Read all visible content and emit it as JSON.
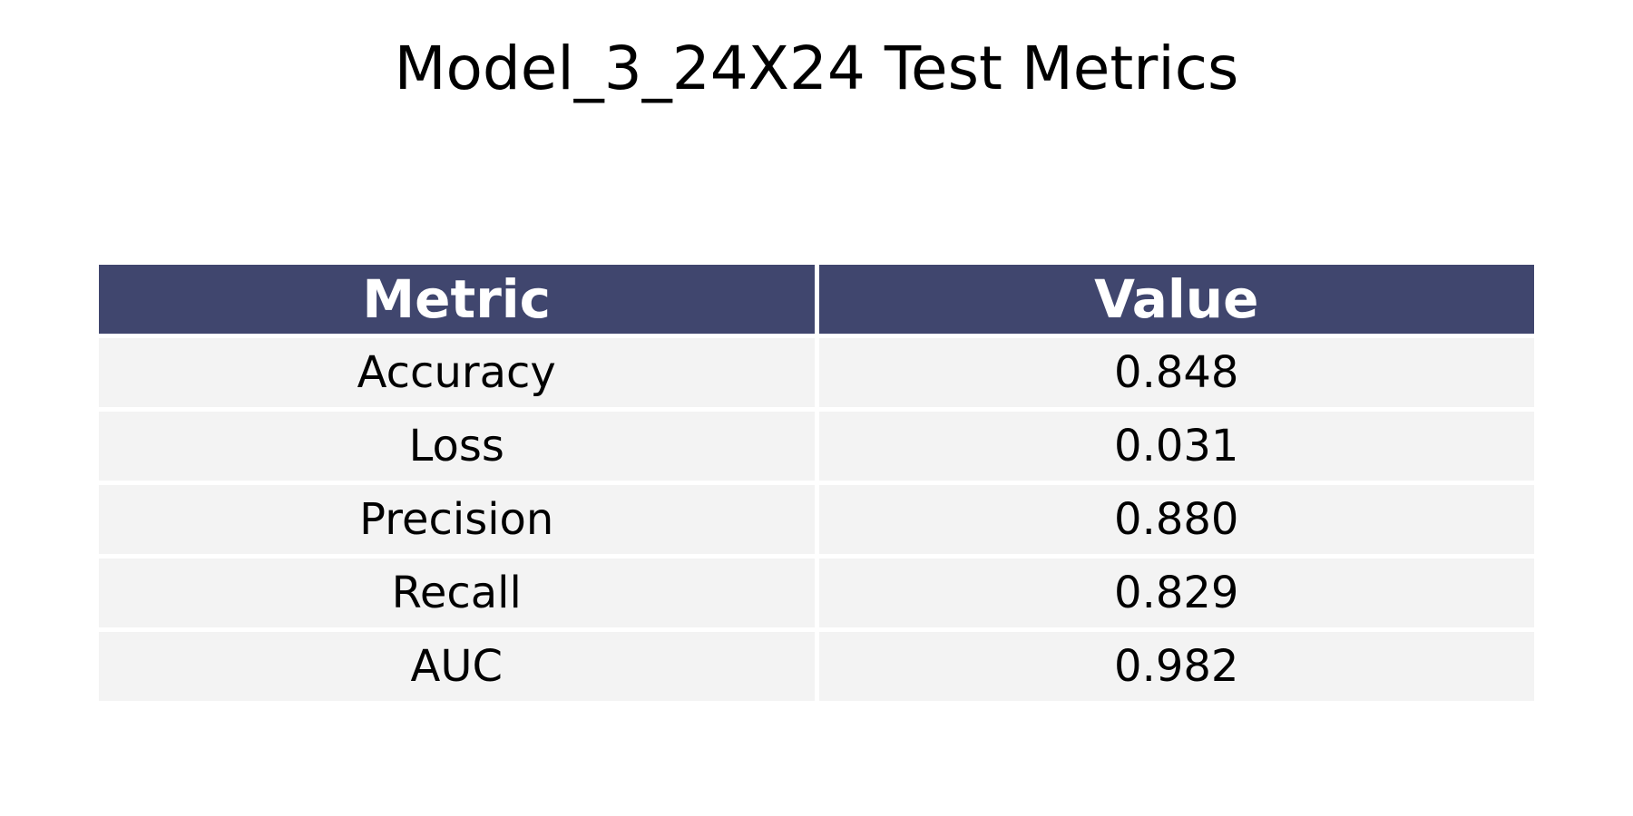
{
  "chart_data": {
    "type": "table",
    "title": "Model_3_24X24 Test Metrics",
    "columns": [
      "Metric",
      "Value"
    ],
    "rows": [
      [
        "Accuracy",
        "0.848"
      ],
      [
        "Loss",
        "0.031"
      ],
      [
        "Precision",
        "0.880"
      ],
      [
        "Recall",
        "0.829"
      ],
      [
        "AUC",
        "0.982"
      ]
    ],
    "colors": {
      "header_background": "#40466e",
      "header_text": "#ffffff",
      "cell_background": "#f3f3f3",
      "cell_text": "#000000"
    }
  }
}
